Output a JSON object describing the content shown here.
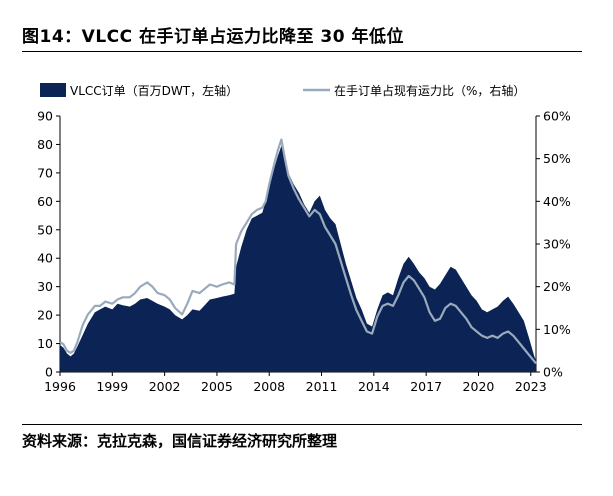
{
  "figure": {
    "title": "图14：VLCC 在手订单占运力比降至 30 年低位",
    "source": "资料来源：克拉克森，国信证券经济研究所整理"
  },
  "chart_data": {
    "type": "area",
    "title": "VLCC 在手订单占运力比降至 30 年低位",
    "legend_position": "top",
    "x_ticks": [
      "1996",
      "1999",
      "2002",
      "2005",
      "2008",
      "2011",
      "2014",
      "2017",
      "2020",
      "2023"
    ],
    "x_range": [
      1996,
      2023.3
    ],
    "y_left": {
      "range": [
        0,
        90
      ],
      "ticks": [
        "0",
        "10",
        "20",
        "30",
        "40",
        "50",
        "60",
        "70",
        "80",
        "90"
      ]
    },
    "y_right": {
      "range": [
        0,
        60
      ],
      "ticks": [
        "0%",
        "10%",
        "20%",
        "30%",
        "40%",
        "50%",
        "60%"
      ]
    },
    "colors": {
      "orderbook": "#0b2455",
      "ratio": "#9aaabd"
    },
    "series": [
      {
        "name": "VLCC订单（百万DWT，左轴）",
        "type": "area",
        "axis": "left",
        "points": [
          [
            1996.0,
            9.5
          ],
          [
            1996.2,
            8.5
          ],
          [
            1996.4,
            6.5
          ],
          [
            1996.6,
            5.5
          ],
          [
            1996.8,
            6.5
          ],
          [
            1997.0,
            9.0
          ],
          [
            1997.3,
            13.0
          ],
          [
            1997.6,
            17.0
          ],
          [
            1998.0,
            21.0
          ],
          [
            1998.3,
            22.0
          ],
          [
            1998.6,
            23.0
          ],
          [
            1999.0,
            22.0
          ],
          [
            1999.3,
            24.0
          ],
          [
            1999.6,
            23.5
          ],
          [
            2000.0,
            23.0
          ],
          [
            2000.3,
            24.0
          ],
          [
            2000.6,
            25.5
          ],
          [
            2001.0,
            26.0
          ],
          [
            2001.3,
            25.0
          ],
          [
            2001.6,
            24.0
          ],
          [
            2002.0,
            23.0
          ],
          [
            2002.3,
            22.0
          ],
          [
            2002.6,
            20.0
          ],
          [
            2003.0,
            18.5
          ],
          [
            2003.3,
            20.0
          ],
          [
            2003.6,
            22.0
          ],
          [
            2004.0,
            21.5
          ],
          [
            2004.3,
            23.5
          ],
          [
            2004.6,
            25.5
          ],
          [
            2005.0,
            26.0
          ],
          [
            2005.3,
            26.5
          ],
          [
            2005.7,
            27.0
          ],
          [
            2006.0,
            27.5
          ],
          [
            2006.1,
            37.0
          ],
          [
            2006.4,
            44.0
          ],
          [
            2006.7,
            50.0
          ],
          [
            2007.0,
            54.0
          ],
          [
            2007.3,
            55.0
          ],
          [
            2007.6,
            56.0
          ],
          [
            2007.8,
            60.0
          ],
          [
            2008.0,
            65.0
          ],
          [
            2008.3,
            72.0
          ],
          [
            2008.5,
            76.0
          ],
          [
            2008.7,
            79.5
          ],
          [
            2008.9,
            76.0
          ],
          [
            2009.1,
            70.0
          ],
          [
            2009.4,
            66.0
          ],
          [
            2009.7,
            63.0
          ],
          [
            2010.0,
            59.0
          ],
          [
            2010.3,
            56.0
          ],
          [
            2010.6,
            60.0
          ],
          [
            2010.9,
            62.0
          ],
          [
            2011.2,
            57.0
          ],
          [
            2011.5,
            54.0
          ],
          [
            2011.8,
            52.0
          ],
          [
            2012.1,
            45.0
          ],
          [
            2012.4,
            38.0
          ],
          [
            2012.7,
            32.0
          ],
          [
            2013.0,
            26.0
          ],
          [
            2013.3,
            22.0
          ],
          [
            2013.6,
            17.0
          ],
          [
            2013.9,
            16.0
          ],
          [
            2014.2,
            22.0
          ],
          [
            2014.5,
            27.0
          ],
          [
            2014.8,
            28.0
          ],
          [
            2015.1,
            27.0
          ],
          [
            2015.4,
            33.0
          ],
          [
            2015.7,
            38.0
          ],
          [
            2016.0,
            40.5
          ],
          [
            2016.3,
            38.0
          ],
          [
            2016.6,
            35.0
          ],
          [
            2016.9,
            33.0
          ],
          [
            2017.2,
            30.0
          ],
          [
            2017.5,
            29.0
          ],
          [
            2017.8,
            31.0
          ],
          [
            2018.1,
            34.0
          ],
          [
            2018.4,
            37.0
          ],
          [
            2018.7,
            36.0
          ],
          [
            2019.0,
            33.0
          ],
          [
            2019.3,
            30.0
          ],
          [
            2019.6,
            27.0
          ],
          [
            2019.9,
            25.0
          ],
          [
            2020.2,
            22.0
          ],
          [
            2020.5,
            21.0
          ],
          [
            2020.8,
            22.0
          ],
          [
            2021.1,
            23.0
          ],
          [
            2021.4,
            25.0
          ],
          [
            2021.7,
            26.5
          ],
          [
            2022.0,
            24.0
          ],
          [
            2022.3,
            21.0
          ],
          [
            2022.6,
            18.0
          ],
          [
            2022.9,
            12.0
          ],
          [
            2023.2,
            5.5
          ],
          [
            2023.3,
            4.0
          ]
        ]
      },
      {
        "name": "在手订单占现有运力比（%，右轴）",
        "type": "line",
        "axis": "right",
        "points": [
          [
            1996.0,
            7.0
          ],
          [
            1996.2,
            6.5
          ],
          [
            1996.4,
            5.0
          ],
          [
            1996.6,
            4.5
          ],
          [
            1996.8,
            5.0
          ],
          [
            1997.0,
            7.0
          ],
          [
            1997.3,
            11.0
          ],
          [
            1997.6,
            13.5
          ],
          [
            1998.0,
            15.5
          ],
          [
            1998.3,
            15.5
          ],
          [
            1998.6,
            16.5
          ],
          [
            1999.0,
            16.0
          ],
          [
            1999.3,
            17.0
          ],
          [
            1999.6,
            17.5
          ],
          [
            2000.0,
            17.5
          ],
          [
            2000.3,
            18.5
          ],
          [
            2000.6,
            20.0
          ],
          [
            2001.0,
            21.0
          ],
          [
            2001.3,
            20.0
          ],
          [
            2001.6,
            18.5
          ],
          [
            2002.0,
            18.0
          ],
          [
            2002.3,
            17.0
          ],
          [
            2002.6,
            15.0
          ],
          [
            2003.0,
            13.5
          ],
          [
            2003.3,
            16.0
          ],
          [
            2003.6,
            19.0
          ],
          [
            2004.0,
            18.5
          ],
          [
            2004.3,
            19.5
          ],
          [
            2004.6,
            20.5
          ],
          [
            2005.0,
            20.0
          ],
          [
            2005.3,
            20.5
          ],
          [
            2005.7,
            21.0
          ],
          [
            2006.0,
            20.5
          ],
          [
            2006.1,
            30.0
          ],
          [
            2006.4,
            33.0
          ],
          [
            2006.7,
            35.0
          ],
          [
            2007.0,
            37.0
          ],
          [
            2007.3,
            38.0
          ],
          [
            2007.6,
            38.5
          ],
          [
            2007.8,
            40.0
          ],
          [
            2008.0,
            44.0
          ],
          [
            2008.3,
            49.0
          ],
          [
            2008.5,
            52.0
          ],
          [
            2008.7,
            54.5
          ],
          [
            2008.9,
            50.0
          ],
          [
            2009.1,
            46.0
          ],
          [
            2009.4,
            43.0
          ],
          [
            2009.7,
            40.5
          ],
          [
            2010.0,
            38.5
          ],
          [
            2010.3,
            36.5
          ],
          [
            2010.6,
            38.0
          ],
          [
            2010.9,
            37.0
          ],
          [
            2011.2,
            34.0
          ],
          [
            2011.5,
            32.0
          ],
          [
            2011.8,
            30.0
          ],
          [
            2012.1,
            26.0
          ],
          [
            2012.4,
            22.0
          ],
          [
            2012.7,
            18.0
          ],
          [
            2013.0,
            14.5
          ],
          [
            2013.3,
            12.0
          ],
          [
            2013.6,
            9.5
          ],
          [
            2013.9,
            9.0
          ],
          [
            2014.2,
            13.0
          ],
          [
            2014.5,
            15.5
          ],
          [
            2014.8,
            16.0
          ],
          [
            2015.1,
            15.5
          ],
          [
            2015.4,
            18.0
          ],
          [
            2015.7,
            21.0
          ],
          [
            2016.0,
            22.5
          ],
          [
            2016.3,
            21.5
          ],
          [
            2016.6,
            19.5
          ],
          [
            2016.9,
            17.5
          ],
          [
            2017.2,
            14.0
          ],
          [
            2017.5,
            12.0
          ],
          [
            2017.8,
            12.5
          ],
          [
            2018.1,
            15.0
          ],
          [
            2018.4,
            16.0
          ],
          [
            2018.7,
            15.5
          ],
          [
            2019.0,
            14.0
          ],
          [
            2019.3,
            12.5
          ],
          [
            2019.6,
            10.5
          ],
          [
            2019.9,
            9.5
          ],
          [
            2020.2,
            8.5
          ],
          [
            2020.5,
            8.0
          ],
          [
            2020.8,
            8.5
          ],
          [
            2021.1,
            8.0
          ],
          [
            2021.4,
            9.0
          ],
          [
            2021.7,
            9.5
          ],
          [
            2022.0,
            8.5
          ],
          [
            2022.3,
            7.0
          ],
          [
            2022.6,
            5.5
          ],
          [
            2022.9,
            4.0
          ],
          [
            2023.2,
            2.5
          ],
          [
            2023.3,
            2.0
          ]
        ]
      }
    ]
  }
}
